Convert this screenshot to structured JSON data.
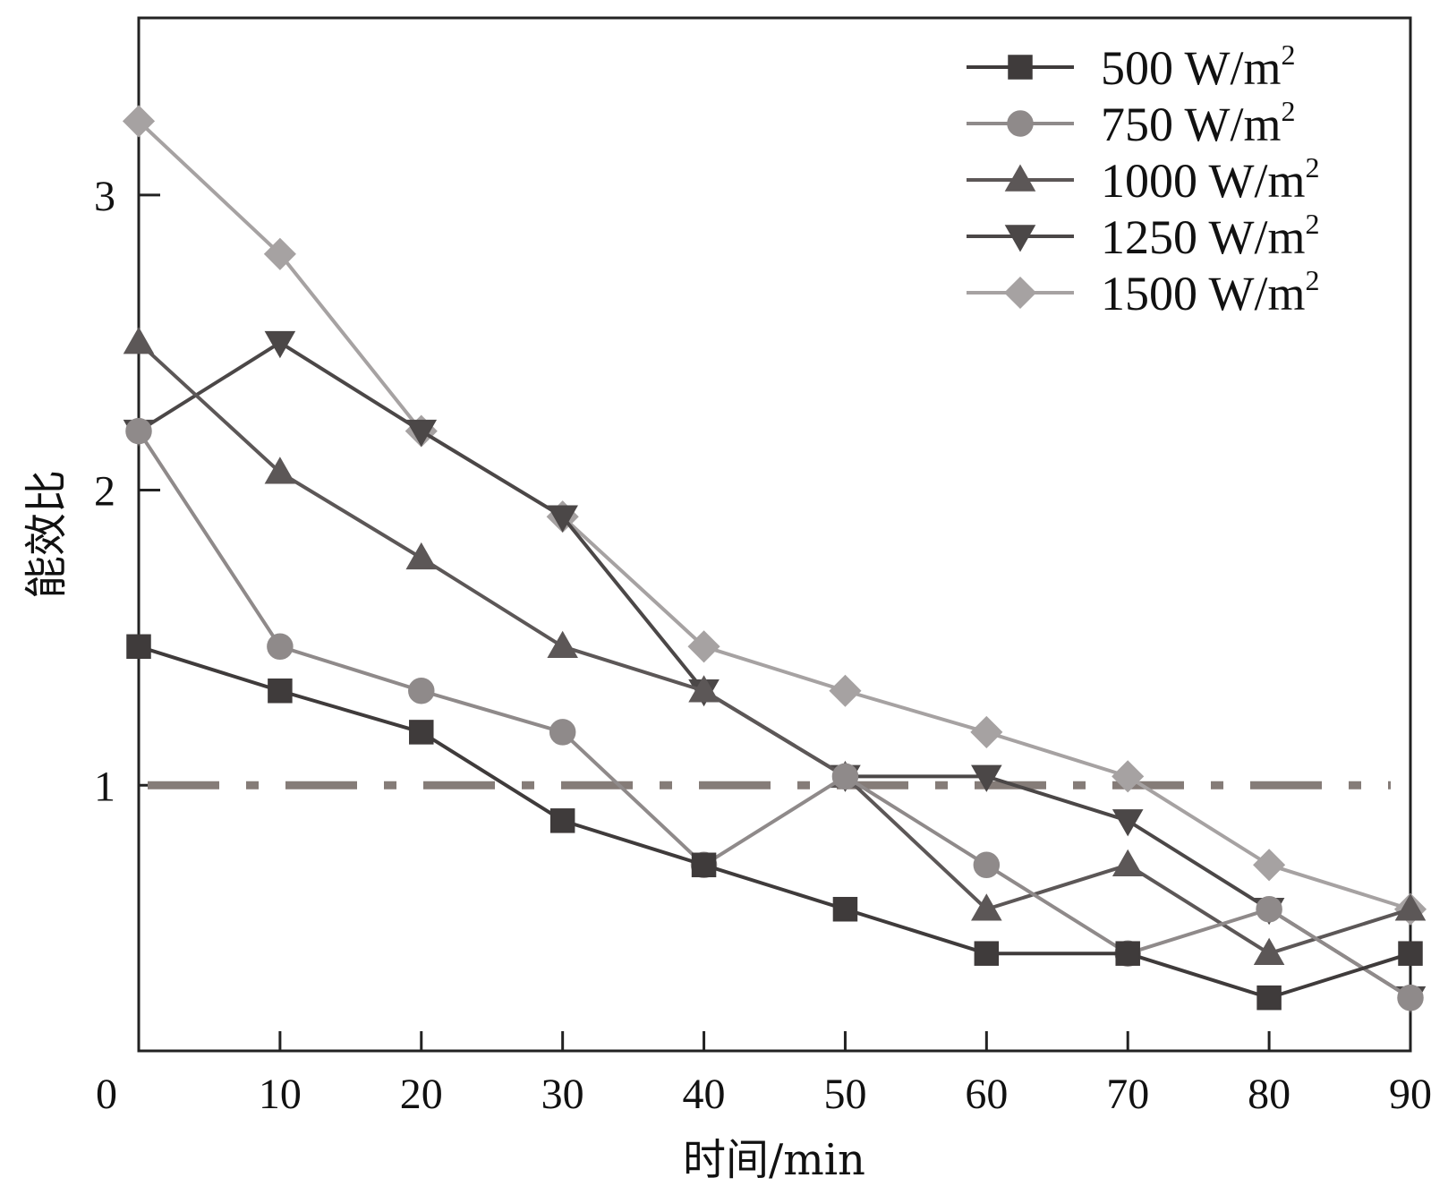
{
  "chart_data": {
    "type": "line",
    "title": "",
    "xlabel": "时间/min",
    "ylabel": "能效比",
    "xlim": [
      0,
      90
    ],
    "ylim": [
      0.1,
      3.6
    ],
    "xticks": [
      10,
      20,
      30,
      40,
      50,
      60,
      70,
      80,
      90
    ],
    "yticks": [
      1,
      2,
      3
    ],
    "x_origin_label": "0",
    "grid": false,
    "legend_position": "top-right",
    "x": [
      0,
      10,
      20,
      30,
      40,
      50,
      60,
      70,
      80,
      90
    ],
    "reference_line": {
      "y": 1,
      "style": "dash-dot",
      "color": "#857c78"
    },
    "series": [
      {
        "name": "500 W/m",
        "sup": "2",
        "marker": "square",
        "color": "#3f3b3b",
        "values": [
          1.47,
          1.32,
          1.18,
          0.88,
          0.73,
          0.58,
          0.43,
          0.43,
          0.28,
          0.43
        ]
      },
      {
        "name": "750 W/m",
        "sup": "2",
        "marker": "circle",
        "color": "#8f8a8a",
        "values": [
          2.2,
          1.47,
          1.32,
          1.18,
          0.73,
          1.03,
          0.73,
          0.43,
          0.58,
          0.28
        ]
      },
      {
        "name": "1000 W/m",
        "sup": "2",
        "marker": "triangle",
        "color": "#5c5757",
        "values": [
          2.5,
          2.06,
          1.77,
          1.47,
          1.32,
          1.03,
          0.58,
          0.73,
          0.43,
          0.58
        ]
      },
      {
        "name": "1250 W/m",
        "sup": "2",
        "marker": "triangle-down",
        "color": "#4b4747",
        "values": [
          2.2,
          2.5,
          2.2,
          1.91,
          1.32,
          1.03,
          1.03,
          0.88,
          0.58,
          0.28
        ]
      },
      {
        "name": "1500 W/m",
        "sup": "2",
        "marker": "diamond",
        "color": "#a6a2a2",
        "values": [
          3.25,
          2.8,
          2.2,
          1.91,
          1.47,
          1.32,
          1.18,
          1.03,
          0.73,
          0.58
        ]
      }
    ]
  }
}
